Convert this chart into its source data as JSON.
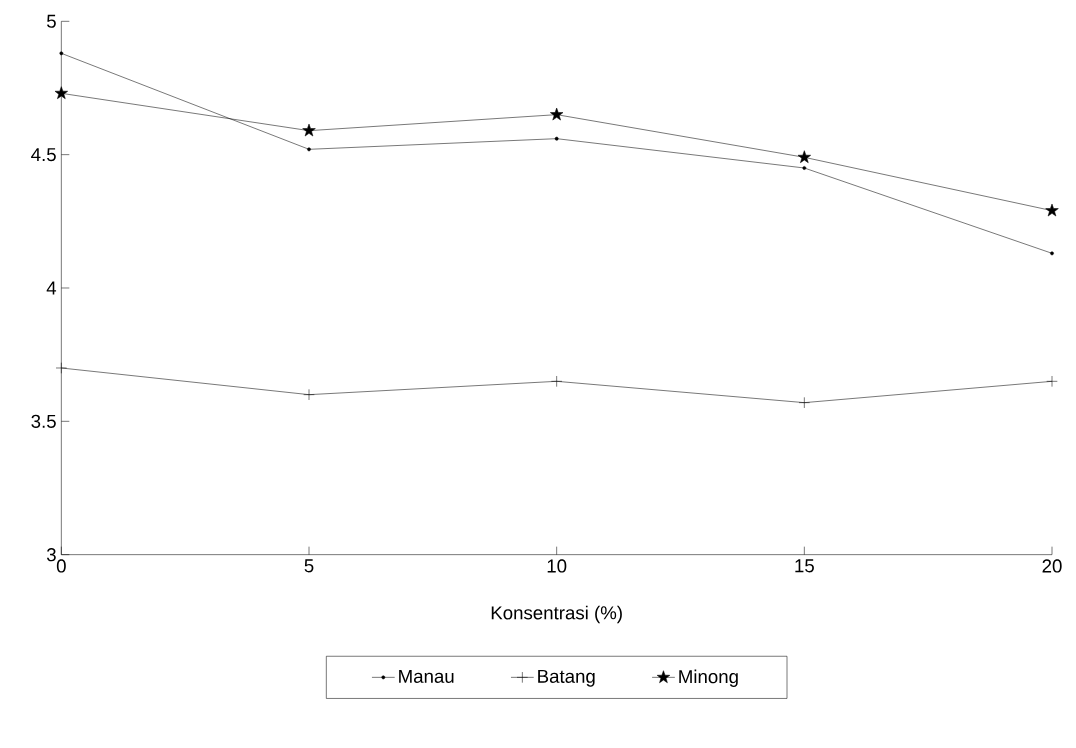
{
  "chart_data": {
    "type": "line",
    "xlabel": "Konsentrasi (%)",
    "x": [
      0,
      5,
      10,
      15,
      20
    ],
    "series": [
      {
        "name": "Manau",
        "color": "#000000",
        "marker": "circle",
        "values": [
          4.88,
          4.52,
          4.56,
          4.45,
          4.13
        ]
      },
      {
        "name": "Batang",
        "color": "#000000",
        "marker": "cross",
        "values": [
          3.7,
          3.6,
          3.65,
          3.57,
          3.65
        ]
      },
      {
        "name": "Minong",
        "color": "#000000",
        "marker": "star",
        "values": [
          4.73,
          4.59,
          4.65,
          4.49,
          4.29
        ]
      }
    ],
    "xlim": [
      0,
      20
    ],
    "ylim": [
      3,
      5
    ],
    "xticks": [
      0,
      5,
      10,
      15,
      20
    ],
    "yticks": [
      3,
      3.5,
      4,
      4.5,
      5
    ],
    "grid": false,
    "legend": "bottom",
    "line_style": "solid"
  }
}
